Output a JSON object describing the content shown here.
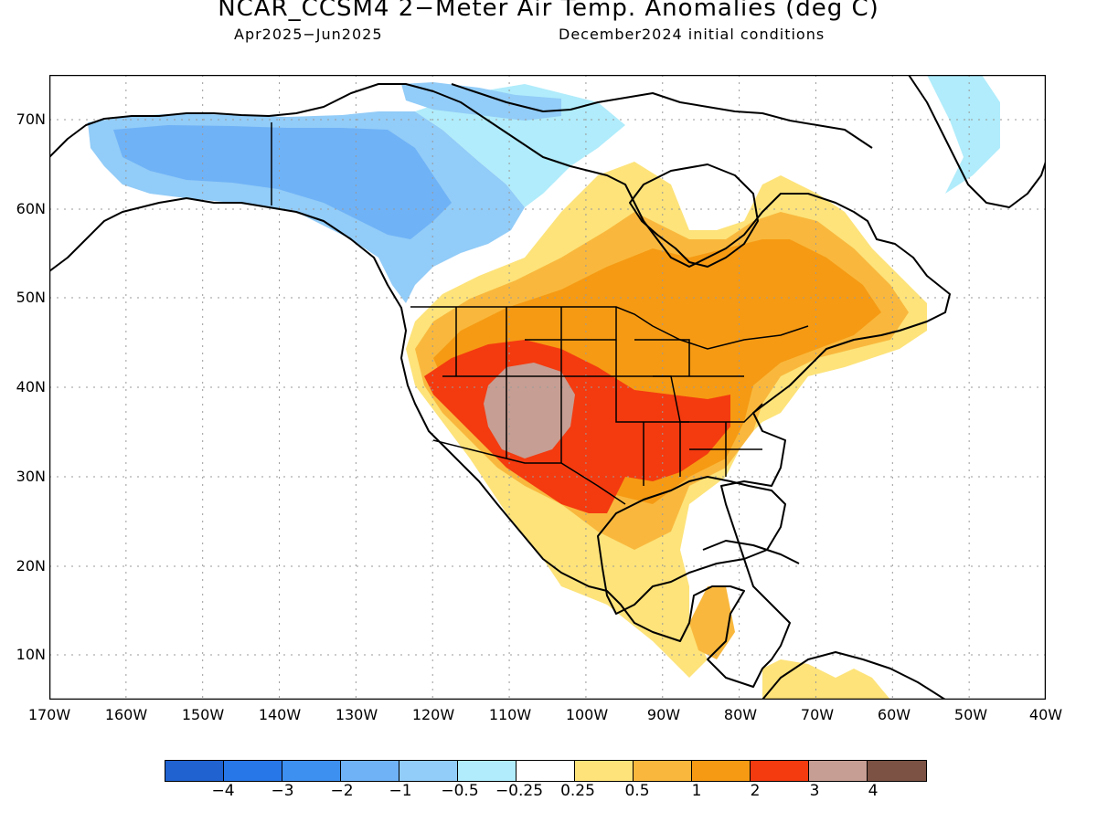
{
  "title": "NCAR_CCSM4 2−Meter Air Temp. Anomalies (deg C)",
  "period": "Apr2025−Jun2025",
  "init": "December2024 initial conditions",
  "lat_labels": [
    "70N",
    "60N",
    "50N",
    "40N",
    "30N",
    "20N",
    "10N"
  ],
  "lon_labels": [
    "170W",
    "160W",
    "150W",
    "140W",
    "130W",
    "120W",
    "110W",
    "100W",
    "90W",
    "80W",
    "70W",
    "60W",
    "50W",
    "40W"
  ],
  "legend": {
    "colors": [
      "#1f62d0",
      "#2777e8",
      "#3d90ef",
      "#6fb2f6",
      "#92ccf8",
      "#b0ecfb",
      "#ffffff",
      "#fde37a",
      "#f9b83d",
      "#f69a13",
      "#f43a0f",
      "#c69e93",
      "#7b5244"
    ],
    "labels": [
      "−4",
      "−3",
      "−2",
      "−1",
      "−0.5",
      "−0.25",
      "0.25",
      "0.5",
      "1",
      "2",
      "3",
      "4"
    ]
  },
  "colors": {
    "land_outline": "#000000",
    "grid": "#9a9a9a",
    "cold_light": "#92ccf8",
    "cold_lighter": "#b0ecfb",
    "cold_mid": "#6fb2f6",
    "warm_light": "#fde37a",
    "warm_mid": "#f9b83d",
    "warm_orange": "#f69a13",
    "warm_red": "#f43a0f",
    "warm_max": "#c69e93"
  }
}
